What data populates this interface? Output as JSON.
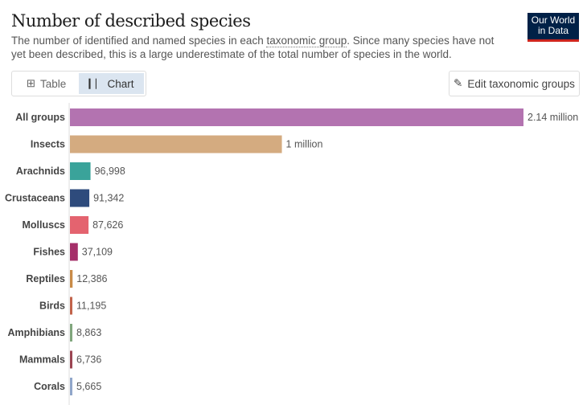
{
  "header": {
    "title": "Number of described species",
    "subtitle_pre": "The number of identified and named species in each ",
    "subtitle_link": "taxonomic group",
    "subtitle_post": ". Since many species have not yet been described, this is a large underestimate of the total number of species in the world.",
    "logo_line1": "Our World",
    "logo_line2": "in Data"
  },
  "controls": {
    "table_label": "Table",
    "chart_label": "Chart",
    "edit_label": "Edit taxonomic groups"
  },
  "chart_data": {
    "type": "bar",
    "orientation": "horizontal",
    "title": "Number of described species",
    "categories": [
      "All groups",
      "Insects",
      "Arachnids",
      "Crustaceans",
      "Molluscs",
      "Fishes",
      "Reptiles",
      "Birds",
      "Amphibians",
      "Mammals",
      "Corals"
    ],
    "values": [
      2140000,
      1000000,
      96998,
      91342,
      87626,
      37109,
      12386,
      11195,
      8863,
      6736,
      5665
    ],
    "labels": [
      "2.14 million",
      "1 million",
      "96,998",
      "91,342",
      "87,626",
      "37,109",
      "12,386",
      "11,195",
      "8,863",
      "6,736",
      "5,665"
    ],
    "colors": [
      "#b373b0",
      "#d4ab80",
      "#3aa39a",
      "#2e4b7c",
      "#e4636f",
      "#a52f69",
      "#c98b48",
      "#c2634b",
      "#80a67d",
      "#9b4552",
      "#90a6ca"
    ],
    "xlim": [
      0,
      2140000
    ]
  }
}
